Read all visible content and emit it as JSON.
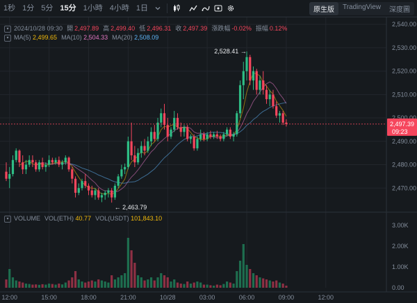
{
  "toolbar": {
    "timeframes": [
      "1秒",
      "1分",
      "5分",
      "15分",
      "1小時",
      "4小時",
      "1日"
    ],
    "active_timeframe": "15分",
    "views": [
      "原生版",
      "TradingView",
      "深度圖"
    ],
    "active_view": "原生版"
  },
  "ohlc": {
    "datetime": "2024/10/28 09:30",
    "open_label": "開",
    "open": "2,497.89",
    "high_label": "高",
    "high": "2,499.40",
    "low_label": "低",
    "low": "2,496.31",
    "close_label": "收",
    "close": "2,497.39",
    "change_label": "漲跌幅",
    "change": "-0.02%",
    "amplitude_label": "振幅",
    "amplitude": "0.12%"
  },
  "ma": {
    "ma5_label": "MA(5)",
    "ma5": "2,499.65",
    "ma10_label": "MA(10)",
    "ma10": "2,504.33",
    "ma20_label": "MA(20)",
    "ma20": "2,508.09"
  },
  "volume": {
    "label": "VOLUME",
    "eth_label": "VOL(ETH)",
    "eth": "40.77",
    "usdt_label": "VOL(USDT)",
    "usdt": "101,843.10"
  },
  "colors": {
    "up": "#2ebd85",
    "down": "#f6465d",
    "ma5": "#f0b90b",
    "ma10": "#e377c2",
    "ma20": "#5fb3f5",
    "volume_up": "#1e6e4f",
    "volume_down": "#8e3044"
  },
  "chart_data": {
    "type": "candlestick",
    "price_axis": {
      "ticks": [
        2540,
        2530,
        2520,
        2510,
        2500,
        2490,
        2480,
        2470
      ],
      "ylim": [
        2460,
        2543
      ]
    },
    "volume_axis": {
      "ticks": [
        "3.00K",
        "2.00K",
        "1.00K",
        "0.00"
      ],
      "ylim": [
        0,
        3600
      ]
    },
    "time_ticks": [
      {
        "label": "12:00",
        "index": 1
      },
      {
        "label": "15:00",
        "index": 13
      },
      {
        "label": "18:00",
        "index": 25
      },
      {
        "label": "21:00",
        "index": 37
      },
      {
        "label": "10/28",
        "index": 49
      },
      {
        "label": "03:00",
        "index": 61
      },
      {
        "label": "06:00",
        "index": 73
      },
      {
        "label": "09:00",
        "index": 85
      },
      {
        "label": "12:00",
        "index": 97
      }
    ],
    "current_price": {
      "value": 2497.39,
      "label": "2,497.39",
      "countdown": "09:23"
    },
    "annotations": [
      {
        "label": "2,528.41",
        "value": 2528.41,
        "index": 74
      },
      {
        "label": "← 2,463.79",
        "value": 2463.79,
        "index": 32
      }
    ],
    "candles": [
      [
        2477.0,
        2481.0,
        2473.0,
        2474.0,
        400
      ],
      [
        2474.0,
        2479.0,
        2470.0,
        2476.0,
        900
      ],
      [
        2476.0,
        2484.0,
        2475.0,
        2482.0,
        500
      ],
      [
        2482.0,
        2487.0,
        2481.0,
        2486.0,
        350
      ],
      [
        2486.0,
        2486.5,
        2479.0,
        2481.0,
        300
      ],
      [
        2481.0,
        2484.0,
        2476.0,
        2478.0,
        250
      ],
      [
        2478.0,
        2482.0,
        2476.0,
        2480.0,
        200
      ],
      [
        2480.0,
        2484.0,
        2479.0,
        2482.0,
        180
      ],
      [
        2482.0,
        2484.0,
        2479.0,
        2481.0,
        150
      ],
      [
        2481.0,
        2482.0,
        2477.0,
        2478.0,
        160
      ],
      [
        2478.0,
        2482.0,
        2477.0,
        2481.0,
        140
      ],
      [
        2481.0,
        2483.0,
        2478.0,
        2479.0,
        170
      ],
      [
        2479.0,
        2481.0,
        2477.0,
        2480.0,
        150
      ],
      [
        2480.0,
        2484.0,
        2479.0,
        2482.0,
        200
      ],
      [
        2482.0,
        2483.0,
        2480.0,
        2481.0,
        180
      ],
      [
        2481.0,
        2483.0,
        2480.0,
        2482.0,
        150
      ],
      [
        2482.0,
        2483.5,
        2479.0,
        2480.0,
        200
      ],
      [
        2480.0,
        2482.0,
        2478.0,
        2481.0,
        160
      ],
      [
        2481.0,
        2484.0,
        2480.0,
        2483.0,
        250
      ],
      [
        2483.0,
        2483.5,
        2477.0,
        2478.0,
        350
      ],
      [
        2478.0,
        2479.0,
        2472.0,
        2474.0,
        500
      ],
      [
        2474.0,
        2475.0,
        2466.0,
        2468.0,
        800
      ],
      [
        2468.0,
        2472.0,
        2467.0,
        2470.0,
        400
      ],
      [
        2470.0,
        2474.0,
        2469.0,
        2473.0,
        300
      ],
      [
        2473.0,
        2476.0,
        2470.0,
        2471.0,
        250
      ],
      [
        2471.0,
        2472.0,
        2467.0,
        2469.0,
        300
      ],
      [
        2469.0,
        2471.0,
        2466.0,
        2467.0,
        350
      ],
      [
        2467.0,
        2470.0,
        2465.0,
        2469.0,
        300
      ],
      [
        2469.0,
        2470.0,
        2465.0,
        2466.0,
        400
      ],
      [
        2466.0,
        2468.0,
        2464.0,
        2467.0,
        350
      ],
      [
        2467.0,
        2469.0,
        2465.0,
        2468.0,
        300
      ],
      [
        2468.0,
        2470.0,
        2466.0,
        2469.0,
        250
      ],
      [
        2469.0,
        2470.0,
        2463.79,
        2466.0,
        600
      ],
      [
        2466.0,
        2472.0,
        2465.0,
        2471.0,
        400
      ],
      [
        2471.0,
        2476.0,
        2470.0,
        2475.0,
        500
      ],
      [
        2475.0,
        2480.0,
        2474.0,
        2478.0,
        600
      ],
      [
        2478.0,
        2480.5,
        2476.0,
        2479.0,
        700
      ],
      [
        2479.0,
        2492.0,
        2478.0,
        2490.0,
        2400
      ],
      [
        2490.0,
        2498.0,
        2482.0,
        2484.0,
        1800
      ],
      [
        2484.0,
        2488.0,
        2479.0,
        2481.0,
        1200
      ],
      [
        2481.0,
        2487.0,
        2480.0,
        2485.0,
        600
      ],
      [
        2485.0,
        2490.0,
        2483.0,
        2488.0,
        500
      ],
      [
        2488.0,
        2491.0,
        2484.0,
        2486.0,
        350
      ],
      [
        2486.0,
        2492.0,
        2485.0,
        2490.0,
        400
      ],
      [
        2490.0,
        2496.0,
        2488.0,
        2494.0,
        500
      ],
      [
        2494.0,
        2497.0,
        2490.0,
        2491.0,
        350
      ],
      [
        2491.0,
        2500.0,
        2490.0,
        2498.0,
        500
      ],
      [
        2498.0,
        2504.0,
        2496.0,
        2502.0,
        700
      ],
      [
        2502.0,
        2506.0,
        2495.0,
        2497.0,
        600
      ],
      [
        2497.0,
        2500.0,
        2490.0,
        2492.0,
        500
      ],
      [
        2492.0,
        2496.0,
        2491.0,
        2495.0,
        300
      ],
      [
        2495.0,
        2503.0,
        2494.0,
        2500.0,
        400
      ],
      [
        2500.0,
        2502.0,
        2495.0,
        2496.0,
        250
      ],
      [
        2496.0,
        2498.0,
        2492.0,
        2494.0,
        200
      ],
      [
        2494.0,
        2497.0,
        2492.0,
        2496.0,
        180
      ],
      [
        2496.0,
        2497.0,
        2490.0,
        2491.0,
        300
      ],
      [
        2491.0,
        2493.0,
        2489.0,
        2492.0,
        200
      ],
      [
        2492.0,
        2493.0,
        2486.0,
        2487.0,
        250
      ],
      [
        2487.0,
        2492.0,
        2486.0,
        2491.0,
        300
      ],
      [
        2491.0,
        2495.0,
        2490.0,
        2493.0,
        250
      ],
      [
        2493.0,
        2494.0,
        2490.0,
        2491.0,
        150
      ],
      [
        2491.0,
        2494.0,
        2490.0,
        2493.0,
        150
      ],
      [
        2493.0,
        2494.5,
        2491.0,
        2492.0,
        120
      ],
      [
        2492.0,
        2494.0,
        2491.0,
        2493.0,
        100
      ],
      [
        2493.0,
        2494.5,
        2491.0,
        2492.0,
        150
      ],
      [
        2492.0,
        2493.0,
        2490.0,
        2491.0,
        120
      ],
      [
        2491.0,
        2494.0,
        2490.0,
        2493.0,
        180
      ],
      [
        2493.0,
        2496.0,
        2492.0,
        2495.0,
        300
      ],
      [
        2495.0,
        2496.0,
        2491.0,
        2492.0,
        250
      ],
      [
        2492.0,
        2494.0,
        2490.0,
        2493.0,
        200
      ],
      [
        2493.0,
        2503.0,
        2492.0,
        2502.0,
        800
      ],
      [
        2502.0,
        2516.0,
        2500.0,
        2514.0,
        1300
      ],
      [
        2514.0,
        2524.0,
        2508.0,
        2520.0,
        2100
      ],
      [
        2520.0,
        2528.41,
        2516.0,
        2526.0,
        1100
      ],
      [
        2526.0,
        2527.0,
        2514.0,
        2516.0,
        900
      ],
      [
        2516.0,
        2522.0,
        2512.0,
        2520.0,
        700
      ],
      [
        2520.0,
        2521.0,
        2510.0,
        2512.0,
        600
      ],
      [
        2512.0,
        2518.0,
        2510.0,
        2516.0,
        500
      ],
      [
        2516.0,
        2520.0,
        2510.0,
        2512.0,
        450
      ],
      [
        2512.0,
        2514.0,
        2506.0,
        2508.0,
        400
      ],
      [
        2508.0,
        2512.0,
        2505.0,
        2510.0,
        350
      ],
      [
        2510.0,
        2512.0,
        2504.0,
        2505.0,
        300
      ],
      [
        2505.0,
        2507.0,
        2500.0,
        2501.0,
        350
      ],
      [
        2501.0,
        2503.0,
        2498.0,
        2502.0,
        250
      ],
      [
        2502.0,
        2503.0,
        2497.0,
        2498.0,
        200
      ],
      [
        2498.0,
        2499.4,
        2496.31,
        2497.39,
        100
      ]
    ]
  }
}
